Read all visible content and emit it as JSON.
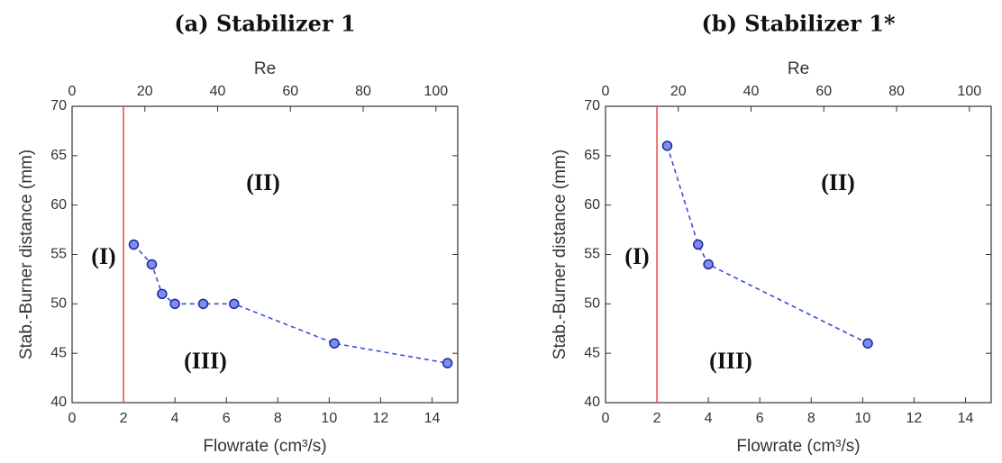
{
  "chart_data": [
    {
      "type": "line",
      "title": "(a) Stabilizer 1",
      "x_label": "Flowrate (cm³/s)",
      "y_label": "Stab.-Burner distance (mm)",
      "x2_label": "Re",
      "x": [
        2.4,
        3.1,
        3.5,
        4.0,
        5.1,
        6.3,
        10.2,
        14.6
      ],
      "series": [
        {
          "color": "#3b4fd8",
          "values": [
            56,
            54,
            51,
            50,
            50,
            50,
            46,
            44
          ]
        }
      ],
      "xlim": [
        0,
        15
      ],
      "xticks": [
        0,
        2,
        4,
        6,
        8,
        10,
        12,
        14
      ],
      "ylim": [
        40,
        70
      ],
      "yticks": [
        40,
        45,
        50,
        55,
        60,
        65,
        70
      ],
      "x2lim": [
        0,
        106
      ],
      "x2ticks": [
        0,
        20,
        40,
        60,
        80,
        100
      ],
      "reference_line": {
        "x": 2,
        "color": "#e8474a"
      },
      "annotations": [
        "(I)",
        "(II)",
        "(III)"
      ]
    },
    {
      "type": "line",
      "title": "(b) Stabilizer 1*",
      "x_label": "Flowrate (cm³/s)",
      "y_label": "Stab.-Burner distance (mm)",
      "x2_label": "Re",
      "x": [
        2.4,
        3.6,
        4.0,
        10.2
      ],
      "series": [
        {
          "color": "#3b4fd8",
          "values": [
            66,
            56,
            54,
            46
          ]
        }
      ],
      "xlim": [
        0,
        15
      ],
      "xticks": [
        0,
        2,
        4,
        6,
        8,
        10,
        12,
        14
      ],
      "ylim": [
        40,
        70
      ],
      "yticks": [
        40,
        45,
        50,
        55,
        60,
        65,
        70
      ],
      "x2lim": [
        0,
        106
      ],
      "x2ticks": [
        0,
        20,
        40,
        60,
        80,
        100
      ],
      "reference_line": {
        "x": 2,
        "color": "#e8474a"
      },
      "annotations": [
        "(I)",
        "(II)",
        "(III)"
      ]
    }
  ]
}
